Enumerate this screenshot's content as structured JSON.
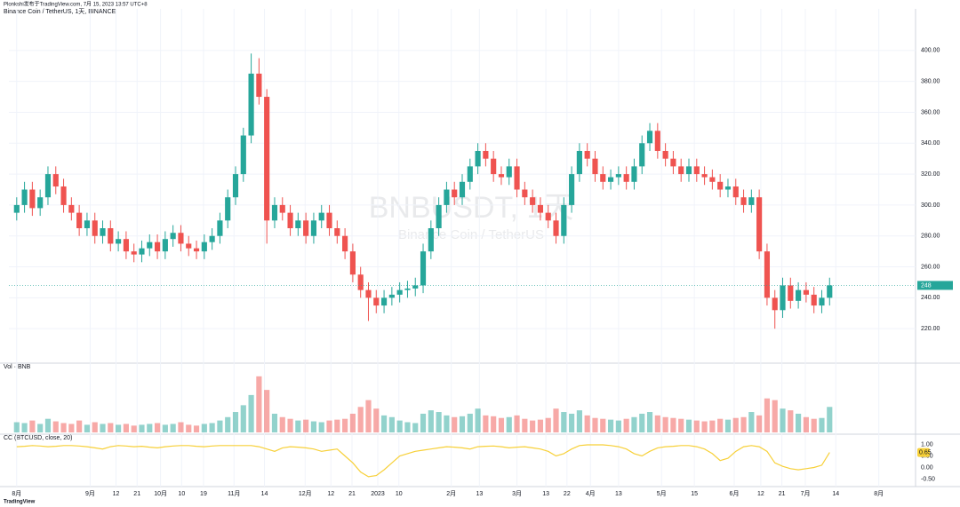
{
  "header": {
    "published": "Plonkshi发布于TradingView.com, 7月 15, 2023 13:57 UTC+8"
  },
  "footer": {
    "logo": "TradingView"
  },
  "chart_data": [
    {
      "type": "candlestick",
      "title": "Binance Coin / TetherUS, 1天, BINANCE",
      "watermark": "BNBUSDT, 1天",
      "watermark_subtitle": "Binance Coin / TetherUS",
      "up_color": "#26a69a",
      "down_color": "#ef5350",
      "grid": true,
      "xlim": [
        -1,
        115
      ],
      "ylim": [
        200,
        420
      ],
      "yticks": [
        {
          "value": 220,
          "label": "220.00"
        },
        {
          "value": 240,
          "label": "240.00"
        },
        {
          "value": 260,
          "label": "260.00"
        },
        {
          "value": 280,
          "label": "280.00"
        },
        {
          "value": 300,
          "label": "300.00"
        },
        {
          "value": 320,
          "label": "320.00"
        },
        {
          "value": 340,
          "label": "340.00"
        },
        {
          "value": 360,
          "label": "360.00"
        },
        {
          "value": 380,
          "label": "380.00"
        },
        {
          "value": 400,
          "label": "400.00"
        }
      ],
      "open": [
        295,
        300,
        310,
        298,
        305,
        320,
        312,
        300,
        295,
        285,
        290,
        280,
        285,
        275,
        278,
        270,
        268,
        272,
        276,
        270,
        278,
        282,
        275,
        272,
        270,
        276,
        280,
        290,
        305,
        320,
        345,
        385,
        370,
        290,
        300,
        295,
        285,
        290,
        280,
        290,
        295,
        285,
        280,
        270,
        255,
        245,
        240,
        235,
        240,
        242,
        245,
        246,
        248,
        270,
        285,
        300,
        310,
        305,
        315,
        325,
        335,
        330,
        320,
        318,
        325,
        310,
        305,
        300,
        295,
        290,
        280,
        300,
        320,
        335,
        330,
        320,
        315,
        318,
        320,
        315,
        325,
        340,
        348,
        335,
        330,
        325,
        320,
        325,
        320,
        318,
        315,
        310,
        312,
        305,
        300,
        305,
        270,
        240,
        232,
        248,
        238,
        245,
        242,
        235,
        240
      ],
      "high": [
        305,
        315,
        315,
        310,
        325,
        325,
        317,
        305,
        300,
        295,
        295,
        290,
        290,
        283,
        283,
        275,
        277,
        281,
        281,
        283,
        287,
        287,
        280,
        277,
        281,
        285,
        295,
        310,
        325,
        350,
        398,
        395,
        375,
        305,
        305,
        300,
        295,
        295,
        295,
        300,
        300,
        290,
        285,
        275,
        260,
        250,
        245,
        245,
        247,
        250,
        251,
        253,
        275,
        290,
        305,
        315,
        315,
        320,
        330,
        340,
        340,
        335,
        325,
        330,
        330,
        315,
        310,
        305,
        300,
        295,
        305,
        325,
        340,
        340,
        335,
        325,
        323,
        325,
        325,
        330,
        345,
        353,
        353,
        340,
        335,
        330,
        330,
        330,
        325,
        323,
        320,
        317,
        317,
        310,
        310,
        310,
        275,
        245,
        253,
        253,
        250,
        250,
        247,
        245,
        253
      ],
      "low": [
        290,
        295,
        293,
        293,
        300,
        307,
        295,
        290,
        280,
        280,
        275,
        275,
        270,
        270,
        265,
        263,
        263,
        267,
        265,
        265,
        273,
        270,
        267,
        265,
        265,
        271,
        275,
        285,
        300,
        315,
        340,
        365,
        275,
        285,
        290,
        280,
        280,
        275,
        275,
        285,
        280,
        275,
        265,
        250,
        240,
        225,
        230,
        230,
        235,
        237,
        240,
        241,
        243,
        265,
        280,
        295,
        300,
        300,
        310,
        320,
        325,
        315,
        313,
        313,
        305,
        300,
        295,
        290,
        285,
        275,
        275,
        295,
        315,
        325,
        315,
        310,
        310,
        313,
        310,
        310,
        320,
        335,
        330,
        325,
        320,
        315,
        315,
        315,
        313,
        310,
        305,
        305,
        300,
        295,
        295,
        265,
        235,
        220,
        227,
        233,
        233,
        237,
        230,
        230,
        235
      ],
      "close": [
        300,
        310,
        298,
        305,
        320,
        312,
        300,
        295,
        285,
        290,
        280,
        285,
        275,
        278,
        270,
        268,
        272,
        276,
        270,
        278,
        282,
        275,
        272,
        270,
        276,
        280,
        290,
        305,
        320,
        345,
        385,
        370,
        290,
        300,
        295,
        285,
        290,
        280,
        290,
        295,
        285,
        280,
        270,
        255,
        245,
        240,
        235,
        240,
        242,
        245,
        246,
        248,
        270,
        285,
        300,
        310,
        305,
        315,
        325,
        335,
        330,
        320,
        318,
        325,
        310,
        305,
        300,
        295,
        290,
        280,
        300,
        320,
        335,
        330,
        320,
        315,
        318,
        320,
        315,
        325,
        340,
        348,
        335,
        330,
        325,
        320,
        325,
        320,
        318,
        315,
        310,
        312,
        305,
        300,
        305,
        270,
        240,
        232,
        248,
        238,
        245,
        242,
        235,
        240,
        248
      ]
    },
    {
      "type": "bar",
      "title": "Vol · BNB",
      "xlim": [
        -1,
        115
      ],
      "ylim": [
        0,
        350
      ],
      "values": [
        60,
        55,
        70,
        50,
        80,
        65,
        55,
        50,
        70,
        45,
        60,
        50,
        55,
        45,
        50,
        40,
        45,
        50,
        55,
        45,
        50,
        60,
        45,
        40,
        50,
        55,
        70,
        90,
        120,
        160,
        220,
        330,
        250,
        110,
        90,
        80,
        70,
        75,
        65,
        60,
        70,
        75,
        80,
        110,
        150,
        190,
        140,
        100,
        90,
        70,
        60,
        55,
        110,
        130,
        120,
        100,
        90,
        95,
        110,
        140,
        100,
        95,
        85,
        90,
        100,
        80,
        70,
        75,
        85,
        140,
        120,
        110,
        130,
        100,
        85,
        80,
        75,
        70,
        80,
        90,
        110,
        120,
        100,
        90,
        85,
        80,
        75,
        70,
        65,
        70,
        80,
        75,
        85,
        90,
        120,
        100,
        200,
        190,
        140,
        130,
        110,
        90,
        80,
        85,
        150
      ]
    },
    {
      "type": "line",
      "title": "CC (BTCUSD, close, 20)",
      "color": "#f7d038",
      "xlim": [
        -1,
        115
      ],
      "ylim": [
        -0.75,
        1.25
      ],
      "yticks": [
        {
          "value": -0.5,
          "label": "-0.50"
        },
        {
          "value": 0,
          "label": "0.00"
        },
        {
          "value": 0.5,
          "label": "0.50"
        },
        {
          "value": 1,
          "label": "1.00"
        }
      ],
      "xticks": [
        {
          "value": 0,
          "label": "8月"
        },
        {
          "value": 9.4,
          "label": "9月"
        },
        {
          "value": 12.7,
          "label": "12"
        },
        {
          "value": 15.4,
          "label": "21"
        },
        {
          "value": 18.4,
          "label": "10月"
        },
        {
          "value": 21.1,
          "label": "10"
        },
        {
          "value": 23.9,
          "label": "19"
        },
        {
          "value": 27.8,
          "label": "11月"
        },
        {
          "value": 31.7,
          "label": "14"
        },
        {
          "value": 36.9,
          "label": "12月"
        },
        {
          "value": 40.2,
          "label": "12"
        },
        {
          "value": 42.9,
          "label": "21"
        },
        {
          "value": 46.2,
          "label": "2023"
        },
        {
          "value": 48.9,
          "label": "10"
        },
        {
          "value": 55.6,
          "label": "2月"
        },
        {
          "value": 59.2,
          "label": "13"
        },
        {
          "value": 64,
          "label": "3月"
        },
        {
          "value": 67.7,
          "label": "13"
        },
        {
          "value": 70.4,
          "label": "22"
        },
        {
          "value": 73.4,
          "label": "4月"
        },
        {
          "value": 77,
          "label": "13"
        },
        {
          "value": 82.5,
          "label": "5月"
        },
        {
          "value": 86.7,
          "label": "15"
        },
        {
          "value": 91.8,
          "label": "6月"
        },
        {
          "value": 95.2,
          "label": "12"
        },
        {
          "value": 97.9,
          "label": "21"
        },
        {
          "value": 100.9,
          "label": "7月"
        },
        {
          "value": 104.8,
          "label": "14"
        },
        {
          "value": 110.3,
          "label": "8月"
        }
      ],
      "values": [
        0.9,
        0.92,
        0.95,
        0.93,
        0.9,
        0.92,
        0.95,
        0.95,
        0.93,
        0.9,
        0.85,
        0.8,
        0.9,
        0.95,
        0.93,
        0.9,
        0.92,
        0.88,
        0.85,
        0.9,
        0.93,
        0.95,
        0.95,
        0.92,
        0.9,
        0.93,
        0.95,
        0.95,
        0.95,
        0.95,
        0.95,
        0.9,
        0.8,
        0.7,
        0.85,
        0.9,
        0.88,
        0.85,
        0.8,
        0.7,
        0.75,
        0.8,
        0.5,
        0.2,
        -0.2,
        -0.4,
        -0.35,
        -0.1,
        0.2,
        0.5,
        0.6,
        0.7,
        0.75,
        0.8,
        0.85,
        0.9,
        0.88,
        0.85,
        0.8,
        0.9,
        0.92,
        0.93,
        0.9,
        0.85,
        0.88,
        0.9,
        0.85,
        0.8,
        0.7,
        0.5,
        0.6,
        0.8,
        0.95,
        0.98,
        0.98,
        0.98,
        0.95,
        0.9,
        0.8,
        0.6,
        0.5,
        0.7,
        0.85,
        0.9,
        0.92,
        0.95,
        0.95,
        0.9,
        0.8,
        0.6,
        0.3,
        0.4,
        0.7,
        0.9,
        0.95,
        0.9,
        0.7,
        0.2,
        0.05,
        -0.05,
        -0.1,
        -0.05,
        0.0,
        0.1,
        0.65
      ]
    }
  ]
}
